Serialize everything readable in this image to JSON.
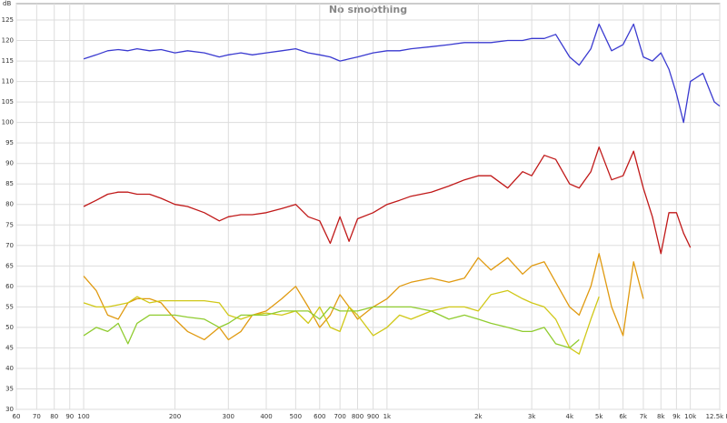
{
  "chart_data": {
    "type": "line",
    "title": "No smoothing",
    "y_label": "dB",
    "log_x": true,
    "grid": true,
    "xlim": [
      60,
      12500
    ],
    "ylim": [
      30,
      129
    ],
    "xticks": [
      60,
      70,
      80,
      90,
      100,
      200,
      300,
      400,
      500,
      600,
      700,
      800,
      900,
      {
        "value": 1000,
        "label": "1k"
      },
      {
        "value": 2000,
        "label": "2k"
      },
      {
        "value": 3000,
        "label": "3k"
      },
      {
        "value": 4000,
        "label": "4k"
      },
      {
        "value": 5000,
        "label": "5k"
      },
      {
        "value": 6000,
        "label": "6k"
      },
      {
        "value": 7000,
        "label": "7k"
      },
      {
        "value": 8000,
        "label": "8k"
      },
      {
        "value": 9000,
        "label": "9k"
      },
      {
        "value": 10000,
        "label": "10k"
      },
      {
        "value": 12500,
        "label": "12.5k Hz"
      }
    ],
    "yticks": [
      30,
      35,
      40,
      45,
      50,
      55,
      60,
      65,
      70,
      75,
      80,
      85,
      90,
      95,
      100,
      105,
      110,
      115,
      120,
      125
    ],
    "x": [
      100,
      110,
      120,
      130,
      140,
      150,
      165,
      180,
      200,
      220,
      250,
      280,
      300,
      330,
      360,
      400,
      450,
      500,
      550,
      600,
      650,
      700,
      750,
      800,
      900,
      1000,
      1100,
      1200,
      1400,
      1600,
      1800,
      2000,
      2200,
      2500,
      2800,
      3000,
      3300,
      3600,
      4000,
      4300,
      4700,
      5000,
      5500,
      6000,
      6500,
      7000,
      7500,
      8000,
      8500,
      9000,
      9500,
      10000,
      11000,
      12000,
      12500
    ],
    "series": [
      {
        "color": "#3a3ad0",
        "values": [
          115.5,
          116.5,
          117.5,
          117.8,
          117.5,
          118,
          117.5,
          117.8,
          117,
          117.5,
          117,
          116,
          116.5,
          117,
          116.5,
          117,
          117.5,
          118,
          117,
          116.5,
          116,
          115,
          115.5,
          116,
          117,
          117.5,
          117.5,
          118,
          118.5,
          119,
          119.5,
          119.5,
          119.5,
          120,
          120,
          120.5,
          120.5,
          121.5,
          116,
          114,
          118,
          124,
          117.5,
          119,
          124,
          116,
          115,
          117,
          113,
          107,
          100,
          110,
          112,
          105,
          104
        ]
      },
      {
        "color": "#c01818",
        "values": [
          79.5,
          81,
          82.5,
          83,
          83,
          82.5,
          82.5,
          81.5,
          80,
          79.5,
          78,
          76,
          77,
          77.5,
          77.5,
          78,
          79,
          80,
          77,
          76,
          70.5,
          77,
          71,
          76.5,
          78,
          80,
          81,
          82,
          83,
          84.5,
          86,
          87,
          87,
          84,
          88,
          87,
          92,
          91,
          85,
          84,
          88,
          94,
          86,
          87,
          93,
          84,
          77,
          68,
          78,
          78,
          73,
          69.5,
          null,
          null,
          null
        ]
      },
      {
        "color": "#e09a10",
        "values": [
          62.5,
          59,
          53,
          52,
          56,
          57,
          57,
          56,
          52,
          49,
          47,
          50,
          47,
          49,
          53,
          54,
          57,
          60,
          55,
          50,
          53,
          58,
          55,
          52,
          55,
          57,
          60,
          61,
          62,
          61,
          62,
          67,
          64,
          67,
          63,
          65,
          66,
          61,
          55,
          53,
          60,
          68,
          55,
          48,
          66,
          57,
          null,
          null,
          null,
          null,
          null,
          null,
          null,
          null,
          null
        ]
      },
      {
        "color": "#d0c818",
        "values": [
          56,
          55,
          55,
          55.5,
          56,
          57.5,
          56,
          56.5,
          56.5,
          56.5,
          56.5,
          56,
          53,
          52,
          53,
          53.5,
          53,
          54,
          51,
          55,
          50,
          49,
          55,
          53,
          48,
          50,
          53,
          52,
          54,
          55,
          55,
          54,
          58,
          59,
          57,
          56,
          55,
          52,
          45,
          43.5,
          52,
          57.5,
          null,
          null,
          null,
          null,
          null,
          null,
          null,
          null,
          null,
          null,
          null,
          null,
          null
        ]
      },
      {
        "color": "#90cc30",
        "values": [
          48,
          50,
          49,
          51,
          46,
          51,
          53,
          53,
          53,
          52.5,
          52,
          50,
          51,
          53,
          53,
          53,
          54,
          54,
          54,
          52,
          55,
          54,
          54,
          54,
          55,
          55,
          55,
          55,
          54,
          52,
          53,
          52,
          51,
          50,
          49,
          49,
          50,
          46,
          45,
          47,
          null,
          null,
          null,
          null,
          null,
          null,
          null,
          null,
          null,
          null,
          null,
          null,
          null,
          null,
          null
        ]
      }
    ]
  }
}
